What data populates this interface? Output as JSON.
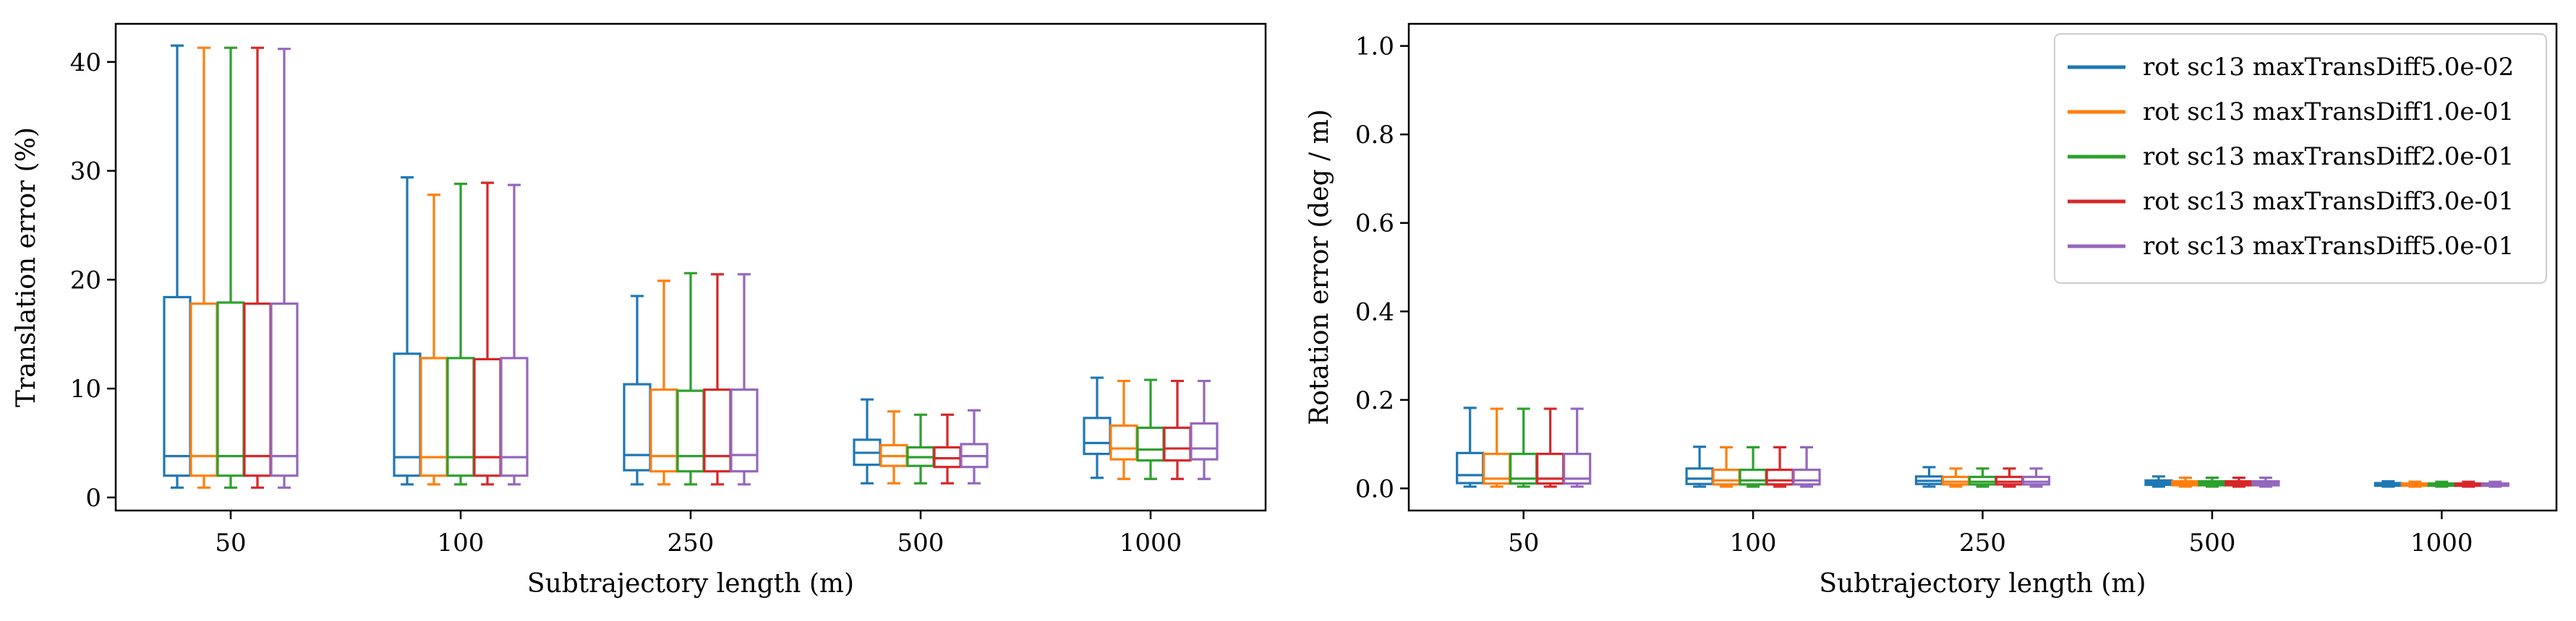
{
  "colors": [
    "#1f77b4",
    "#ff7f0e",
    "#2ca02c",
    "#d62728",
    "#9467bd"
  ],
  "chart_data": [
    {
      "type": "box",
      "xlabel": "Subtrajectory length (m)",
      "ylabel": "Translation error (%)",
      "categories": [
        "50",
        "100",
        "250",
        "500",
        "1000"
      ],
      "ylim": [
        -1.2,
        43.5
      ],
      "yticks": [
        0,
        10,
        20,
        30,
        40
      ],
      "legend": null,
      "series": [
        {
          "name": "rot sc13 maxTransDiff5.0e-02",
          "boxes": [
            {
              "whislo": 0.9,
              "q1": 2.0,
              "med": 3.8,
              "q3": 18.4,
              "whishi": 41.5
            },
            {
              "whislo": 1.2,
              "q1": 2.0,
              "med": 3.7,
              "q3": 13.2,
              "whishi": 29.4
            },
            {
              "whislo": 1.2,
              "q1": 2.5,
              "med": 3.9,
              "q3": 10.4,
              "whishi": 18.5
            },
            {
              "whislo": 1.3,
              "q1": 3.0,
              "med": 4.1,
              "q3": 5.3,
              "whishi": 9.0
            },
            {
              "whislo": 1.8,
              "q1": 4.0,
              "med": 5.0,
              "q3": 7.3,
              "whishi": 11.0
            }
          ]
        },
        {
          "name": "rot sc13 maxTransDiff1.0e-01",
          "boxes": [
            {
              "whislo": 0.9,
              "q1": 2.0,
              "med": 3.8,
              "q3": 17.8,
              "whishi": 41.3
            },
            {
              "whislo": 1.2,
              "q1": 2.0,
              "med": 3.7,
              "q3": 12.8,
              "whishi": 27.8
            },
            {
              "whislo": 1.2,
              "q1": 2.4,
              "med": 3.8,
              "q3": 9.9,
              "whishi": 19.9
            },
            {
              "whislo": 1.3,
              "q1": 2.9,
              "med": 3.8,
              "q3": 4.8,
              "whishi": 7.9
            },
            {
              "whislo": 1.7,
              "q1": 3.5,
              "med": 4.5,
              "q3": 6.6,
              "whishi": 10.7
            }
          ]
        },
        {
          "name": "rot sc13 maxTransDiff2.0e-01",
          "boxes": [
            {
              "whislo": 0.9,
              "q1": 2.0,
              "med": 3.8,
              "q3": 17.9,
              "whishi": 41.3
            },
            {
              "whislo": 1.2,
              "q1": 2.0,
              "med": 3.7,
              "q3": 12.8,
              "whishi": 28.8
            },
            {
              "whislo": 1.2,
              "q1": 2.4,
              "med": 3.8,
              "q3": 9.8,
              "whishi": 20.6
            },
            {
              "whislo": 1.3,
              "q1": 2.9,
              "med": 3.7,
              "q3": 4.6,
              "whishi": 7.6
            },
            {
              "whislo": 1.7,
              "q1": 3.4,
              "med": 4.4,
              "q3": 6.4,
              "whishi": 10.8
            }
          ]
        },
        {
          "name": "rot sc13 maxTransDiff3.0e-01",
          "boxes": [
            {
              "whislo": 0.9,
              "q1": 2.0,
              "med": 3.8,
              "q3": 17.8,
              "whishi": 41.3
            },
            {
              "whislo": 1.2,
              "q1": 2.0,
              "med": 3.7,
              "q3": 12.7,
              "whishi": 28.9
            },
            {
              "whislo": 1.2,
              "q1": 2.4,
              "med": 3.8,
              "q3": 9.9,
              "whishi": 20.5
            },
            {
              "whislo": 1.3,
              "q1": 2.8,
              "med": 3.6,
              "q3": 4.6,
              "whishi": 7.6
            },
            {
              "whislo": 1.7,
              "q1": 3.4,
              "med": 4.5,
              "q3": 6.4,
              "whishi": 10.7
            }
          ]
        },
        {
          "name": "rot sc13 maxTransDiff5.0e-01",
          "boxes": [
            {
              "whislo": 0.9,
              "q1": 2.0,
              "med": 3.8,
              "q3": 17.8,
              "whishi": 41.2
            },
            {
              "whislo": 1.2,
              "q1": 2.0,
              "med": 3.7,
              "q3": 12.8,
              "whishi": 28.7
            },
            {
              "whislo": 1.2,
              "q1": 2.4,
              "med": 3.9,
              "q3": 9.9,
              "whishi": 20.5
            },
            {
              "whislo": 1.3,
              "q1": 2.8,
              "med": 3.8,
              "q3": 4.9,
              "whishi": 8.0
            },
            {
              "whislo": 1.7,
              "q1": 3.5,
              "med": 4.5,
              "q3": 6.8,
              "whishi": 10.7
            }
          ]
        }
      ]
    },
    {
      "type": "box",
      "xlabel": "Subtrajectory length (m)",
      "ylabel": "Rotation error (deg / m)",
      "categories": [
        "50",
        "100",
        "250",
        "500",
        "1000"
      ],
      "ylim": [
        -0.05,
        1.05
      ],
      "yticks": [
        "0.0",
        "0.2",
        "0.4",
        "0.6",
        "0.8",
        "1.0"
      ],
      "legend": "top-right",
      "series": [
        {
          "name": "rot sc13 maxTransDiff5.0e-02",
          "boxes": [
            {
              "whislo": 0.004,
              "q1": 0.012,
              "med": 0.03,
              "q3": 0.08,
              "whishi": 0.182
            },
            {
              "whislo": 0.004,
              "q1": 0.01,
              "med": 0.022,
              "q3": 0.045,
              "whishi": 0.094
            },
            {
              "whislo": 0.004,
              "q1": 0.01,
              "med": 0.017,
              "q3": 0.027,
              "whishi": 0.048
            },
            {
              "whislo": 0.004,
              "q1": 0.008,
              "med": 0.013,
              "q3": 0.018,
              "whishi": 0.027
            },
            {
              "whislo": 0.004,
              "q1": 0.006,
              "med": 0.009,
              "q3": 0.012,
              "whishi": 0.016
            }
          ]
        },
        {
          "name": "rot sc13 maxTransDiff1.0e-01",
          "boxes": [
            {
              "whislo": 0.004,
              "q1": 0.011,
              "med": 0.022,
              "q3": 0.078,
              "whishi": 0.18
            },
            {
              "whislo": 0.004,
              "q1": 0.009,
              "med": 0.018,
              "q3": 0.042,
              "whishi": 0.093
            },
            {
              "whislo": 0.004,
              "q1": 0.009,
              "med": 0.015,
              "q3": 0.026,
              "whishi": 0.045
            },
            {
              "whislo": 0.004,
              "q1": 0.007,
              "med": 0.012,
              "q3": 0.016,
              "whishi": 0.024
            },
            {
              "whislo": 0.004,
              "q1": 0.006,
              "med": 0.008,
              "q3": 0.011,
              "whishi": 0.015
            }
          ]
        },
        {
          "name": "rot sc13 maxTransDiff2.0e-01",
          "boxes": [
            {
              "whislo": 0.004,
              "q1": 0.011,
              "med": 0.022,
              "q3": 0.078,
              "whishi": 0.18
            },
            {
              "whislo": 0.004,
              "q1": 0.009,
              "med": 0.018,
              "q3": 0.042,
              "whishi": 0.093
            },
            {
              "whislo": 0.004,
              "q1": 0.009,
              "med": 0.015,
              "q3": 0.026,
              "whishi": 0.045
            },
            {
              "whislo": 0.004,
              "q1": 0.007,
              "med": 0.012,
              "q3": 0.016,
              "whishi": 0.024
            },
            {
              "whislo": 0.004,
              "q1": 0.006,
              "med": 0.008,
              "q3": 0.011,
              "whishi": 0.015
            }
          ]
        },
        {
          "name": "rot sc13 maxTransDiff3.0e-01",
          "boxes": [
            {
              "whislo": 0.004,
              "q1": 0.011,
              "med": 0.022,
              "q3": 0.078,
              "whishi": 0.18
            },
            {
              "whislo": 0.004,
              "q1": 0.009,
              "med": 0.018,
              "q3": 0.042,
              "whishi": 0.093
            },
            {
              "whislo": 0.004,
              "q1": 0.009,
              "med": 0.015,
              "q3": 0.026,
              "whishi": 0.045
            },
            {
              "whislo": 0.004,
              "q1": 0.007,
              "med": 0.012,
              "q3": 0.016,
              "whishi": 0.024
            },
            {
              "whislo": 0.004,
              "q1": 0.006,
              "med": 0.008,
              "q3": 0.011,
              "whishi": 0.015
            }
          ]
        },
        {
          "name": "rot sc13 maxTransDiff5.0e-01",
          "boxes": [
            {
              "whislo": 0.004,
              "q1": 0.011,
              "med": 0.022,
              "q3": 0.078,
              "whishi": 0.18
            },
            {
              "whislo": 0.004,
              "q1": 0.009,
              "med": 0.018,
              "q3": 0.042,
              "whishi": 0.093
            },
            {
              "whislo": 0.004,
              "q1": 0.009,
              "med": 0.015,
              "q3": 0.026,
              "whishi": 0.045
            },
            {
              "whislo": 0.004,
              "q1": 0.007,
              "med": 0.012,
              "q3": 0.016,
              "whishi": 0.024
            },
            {
              "whislo": 0.004,
              "q1": 0.006,
              "med": 0.008,
              "q3": 0.011,
              "whishi": 0.015
            }
          ]
        }
      ]
    }
  ]
}
